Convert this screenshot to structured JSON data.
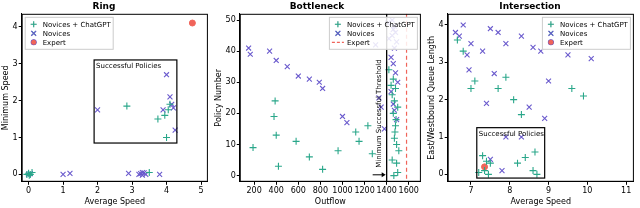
{
  "chart_data": [
    {
      "type": "scatter",
      "title": "Ring",
      "x_label": "Average Speed",
      "y_label": "Minimum Speed",
      "xlim": [
        -0.2,
        5.2
      ],
      "xticks": [
        0,
        1,
        2,
        3,
        4,
        5
      ],
      "ylim": [
        -0.2,
        4.35
      ],
      "yticks": [
        0,
        1,
        2,
        3,
        4
      ],
      "grid": false,
      "legend": "upper left",
      "series": [
        {
          "name": "Novices + ChatGPT",
          "color": "#2aa78a",
          "marker": "plus",
          "x": [
            2.85,
            3.75,
            4.0,
            4.05,
            4.1,
            3.95,
            3.5,
            0.05,
            0.1,
            -0.05,
            0.02,
            0.0
          ],
          "values": [
            1.85,
            1.5,
            1.0,
            1.75,
            1.9,
            1.6,
            0.05,
            0.0,
            0.05,
            0.0,
            -0.02,
            0.03
          ]
        },
        {
          "name": "Novices",
          "color": "#6a5acd",
          "marker": "x",
          "x": [
            0.0,
            0.05,
            1.0,
            1.2,
            2.0,
            3.2,
            3.25,
            3.3,
            3.35,
            3.4,
            3.3,
            2.9,
            3.8,
            4.0,
            4.1,
            4.15,
            4.2,
            4.25,
            3.9
          ],
          "values": [
            0.0,
            0.02,
            0.0,
            0.03,
            1.75,
            0.0,
            0.02,
            -0.02,
            0.04,
            0.0,
            0.05,
            0.03,
            0.0,
            2.7,
            2.1,
            1.9,
            1.8,
            1.2,
            1.75
          ]
        },
        {
          "name": "Expert",
          "color": "#f0645a",
          "marker": "circle",
          "x": [
            4.75
          ],
          "values": [
            4.1
          ]
        }
      ],
      "annotations": [
        {
          "type": "box",
          "text": "Successful Policies",
          "x": [
            1.9,
            4.3
          ],
          "y": [
            0.85,
            3.1
          ]
        }
      ]
    },
    {
      "type": "scatter",
      "title": "Bottleneck",
      "x_label": "Outflow",
      "y_label": "Policy Number",
      "xlim": [
        70,
        1710
      ],
      "xticks": [
        200,
        400,
        600,
        800,
        1000,
        1200,
        1400,
        1600
      ],
      "ylim": [
        -2,
        52
      ],
      "yticks": [
        0,
        10,
        20,
        30,
        40,
        50
      ],
      "grid": false,
      "legend": "upper right",
      "series": [
        {
          "name": "Novices + ChatGPT",
          "color": "#2aa78a",
          "marker": "plus",
          "x": [
            190,
            380,
            390,
            400,
            420,
            580,
            700,
            820,
            960,
            1120,
            1150,
            1230,
            1270,
            1420,
            1440,
            1450,
            1460,
            1460,
            1470,
            1470,
            1480,
            1480,
            1490,
            1490,
            1500,
            1500,
            1510,
            1450,
            1465,
            1475,
            1485
          ],
          "values": [
            9,
            19,
            24,
            13,
            3,
            11,
            6,
            2,
            8,
            14,
            11,
            16,
            7,
            34,
            29,
            26,
            31,
            20,
            24,
            12,
            28,
            16,
            4,
            10,
            1,
            22,
            8,
            5,
            0,
            14,
            18
          ]
        },
        {
          "name": "Novices",
          "color": "#6a5acd",
          "marker": "x",
          "x": [
            150,
            165,
            340,
            400,
            500,
            600,
            700,
            790,
            820,
            1000,
            1040,
            1300,
            1330,
            1350,
            1380,
            1410,
            1420,
            1440,
            1450,
            1450,
            1460,
            1460,
            1470,
            1470,
            1480,
            1480,
            1490,
            1500,
            1440,
            1460,
            1470,
            1490
          ],
          "values": [
            41,
            39,
            40,
            37,
            35,
            32,
            31,
            30,
            28,
            19,
            17,
            42,
            25,
            22,
            15,
            49,
            44,
            38,
            50,
            45,
            47,
            36,
            48,
            41,
            46,
            33,
            43,
            30,
            27,
            23,
            21,
            18
          ]
        },
        {
          "name": "Expert",
          "color": "#f0645a",
          "type": "vline",
          "line_style": "dashed",
          "x": [
            1580
          ]
        }
      ],
      "annotations": [
        {
          "type": "vline",
          "text": "Minimum Successful Threshold",
          "x": 1400,
          "color": "#000000"
        }
      ]
    },
    {
      "type": "scatter",
      "title": "Intersection",
      "x_label": "Average Speed",
      "y_label": "East/Westbound Queue Length",
      "xlim": [
        6.4,
        11.2
      ],
      "xticks": [
        7,
        8,
        9,
        10,
        11
      ],
      "ylim": [
        -0.2,
        4.3
      ],
      "yticks": [
        0,
        1,
        2,
        3,
        4
      ],
      "grid": false,
      "legend": "upper right",
      "series": [
        {
          "name": "Novices + ChatGPT",
          "color": "#2aa78a",
          "marker": "plus",
          "x": [
            6.65,
            6.8,
            7.1,
            7.0,
            7.7,
            7.9,
            8.1,
            8.3,
            9.6,
            9.9,
            7.3,
            7.4,
            7.5,
            7.35,
            7.45,
            8.2,
            8.6,
            8.7,
            8.4,
            8.65,
            7.2
          ],
          "values": [
            3.6,
            3.3,
            2.5,
            2.3,
            2.3,
            2.6,
            2.0,
            1.6,
            2.3,
            2.1,
            0.5,
            0.35,
            0.3,
            0.1,
            0.0,
            0.3,
            0.1,
            0.0,
            0.45,
            0.6,
            0.05
          ]
        },
        {
          "name": "Novices",
          "color": "#6a5acd",
          "marker": "x",
          "x": [
            6.6,
            6.8,
            6.9,
            7.0,
            6.95,
            7.3,
            7.5,
            7.7,
            7.9,
            8.3,
            8.6,
            7.9,
            8.3,
            7.8,
            7.5,
            7.4,
            8.8,
            8.5,
            9.0,
            8.9,
            9.5,
            10.1,
            7.6,
            6.7
          ],
          "values": [
            3.8,
            4.0,
            3.2,
            3.5,
            2.8,
            3.3,
            3.9,
            3.8,
            3.5,
            3.7,
            3.4,
            1.0,
            1.0,
            0.1,
            0.4,
            1.9,
            3.3,
            1.8,
            2.5,
            1.5,
            3.2,
            3.1,
            2.7,
            3.7
          ]
        },
        {
          "name": "Expert",
          "color": "#f0645a",
          "marker": "circle",
          "x": [
            7.35
          ],
          "values": [
            0.2
          ]
        }
      ],
      "annotations": [
        {
          "type": "box",
          "text": "Successful Policies",
          "x": [
            7.15,
            8.9
          ],
          "y": [
            -0.1,
            1.25
          ]
        }
      ]
    }
  ]
}
